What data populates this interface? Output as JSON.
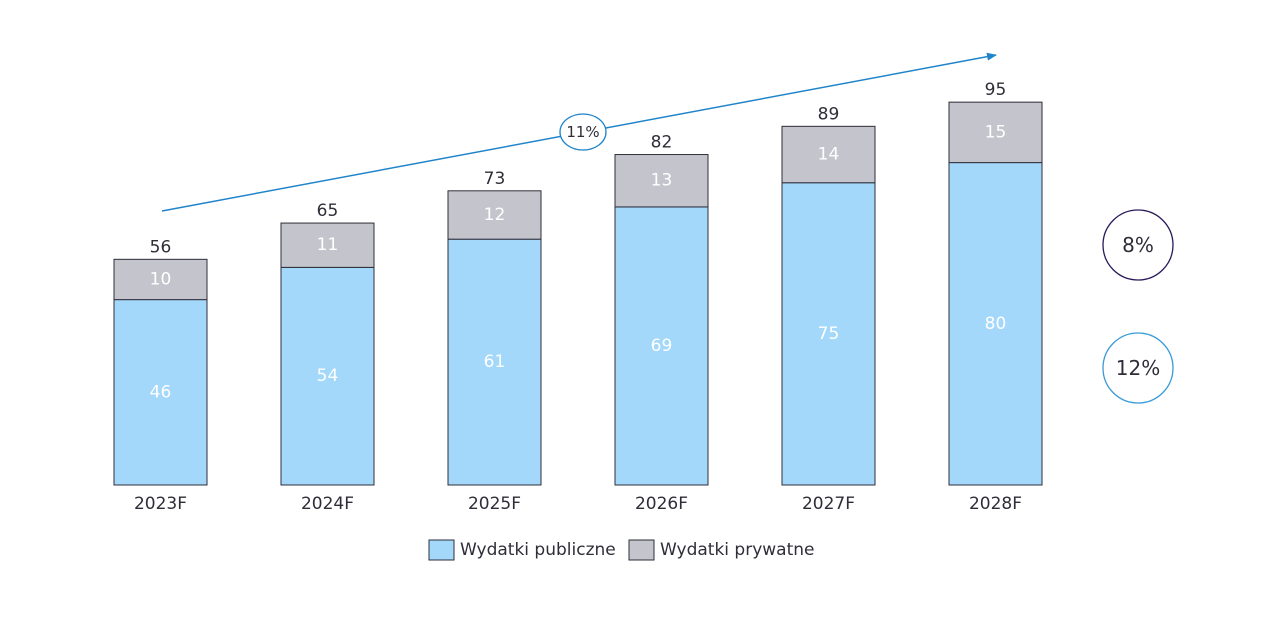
{
  "chart_data": {
    "type": "bar",
    "stacked": true,
    "categories": [
      "2023F",
      "2024F",
      "2025F",
      "2026F",
      "2027F",
      "2028F"
    ],
    "series": [
      {
        "name": "Wydatki publiczne",
        "values": [
          46,
          54,
          61,
          69,
          75,
          80
        ],
        "color": "#a3d8fb"
      },
      {
        "name": "Wydatki prywatne",
        "values": [
          10,
          11,
          12,
          13,
          14,
          15
        ],
        "color": "#c4c4cd"
      }
    ],
    "totals": [
      56,
      65,
      73,
      82,
      89,
      95
    ],
    "ylim": [
      0,
      100
    ],
    "grid": false,
    "legend": "bottom-center",
    "annotations": {
      "total_cagr": {
        "label": "11%",
        "color": "#1f84c9"
      },
      "private_cagr": {
        "label": "8%",
        "color": "#2b1a5a"
      },
      "public_cagr": {
        "label": "12%",
        "color": "#3a9ad8"
      }
    }
  }
}
